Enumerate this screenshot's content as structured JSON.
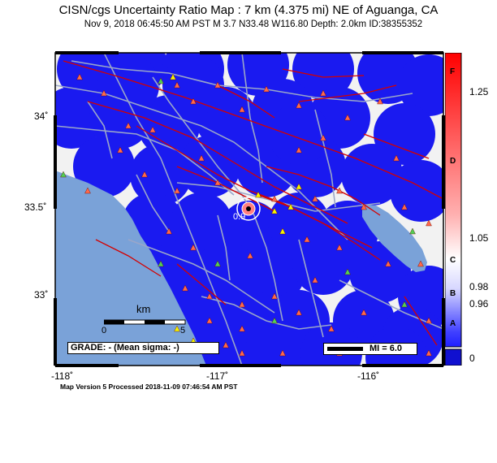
{
  "title": "CISN/cgs Uncertainty Ratio Map : 7 km (4.375 mi) NE of Aguanga, CA",
  "subtitle": "Nov  9, 2018 06:45:50 AM PST    M 3.7    N33.48 W116.80    Depth: 2.0km    ID:38355352",
  "lat_labels": [
    "34˚",
    "33.5˚",
    "33˚"
  ],
  "lon_labels": [
    "-118˚",
    "-117˚",
    "-116˚"
  ],
  "scale_bar": {
    "unit": "km",
    "start": "0",
    "end": "5"
  },
  "grade_text": "GRADE: - (Mean sigma: -)",
  "mi_text": "MI = 6.0",
  "contour_label": "0.9",
  "colorbar": {
    "letters": [
      "F",
      "D",
      "C",
      "B",
      "A"
    ],
    "values": [
      "1.25",
      "1.05",
      "0.98",
      "0.96",
      "0"
    ]
  },
  "footer": "Map Version 5 Processed 2018-11-09 07:46:54 AM PST",
  "colors": {
    "ocean": "#7aa2d8",
    "land": "#f2f2f2",
    "coverage": "#1a1af0",
    "fault": "#d40000",
    "road": "#9aa6c9",
    "station_red": "#ff6a4a",
    "station_green": "#52d052",
    "station_yellow": "#f5f500"
  }
}
